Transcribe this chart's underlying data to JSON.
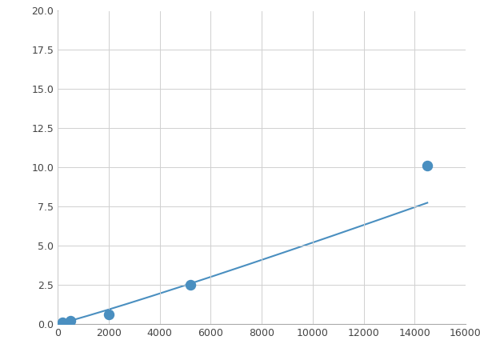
{
  "x": [
    200,
    500,
    2000,
    5200,
    14500
  ],
  "y": [
    0.1,
    0.2,
    0.6,
    2.5,
    10.1
  ],
  "line_color": "#4a8fc0",
  "marker_color": "#4a8fc0",
  "marker_size": 5,
  "xlim": [
    0,
    16000
  ],
  "ylim": [
    0,
    20
  ],
  "xticks": [
    0,
    2000,
    4000,
    6000,
    8000,
    10000,
    12000,
    14000,
    16000
  ],
  "yticks": [
    0.0,
    2.5,
    5.0,
    7.5,
    10.0,
    12.5,
    15.0,
    17.5,
    20.0
  ],
  "grid": true,
  "background_color": "#ffffff",
  "figsize": [
    6.0,
    4.5
  ],
  "dpi": 100
}
